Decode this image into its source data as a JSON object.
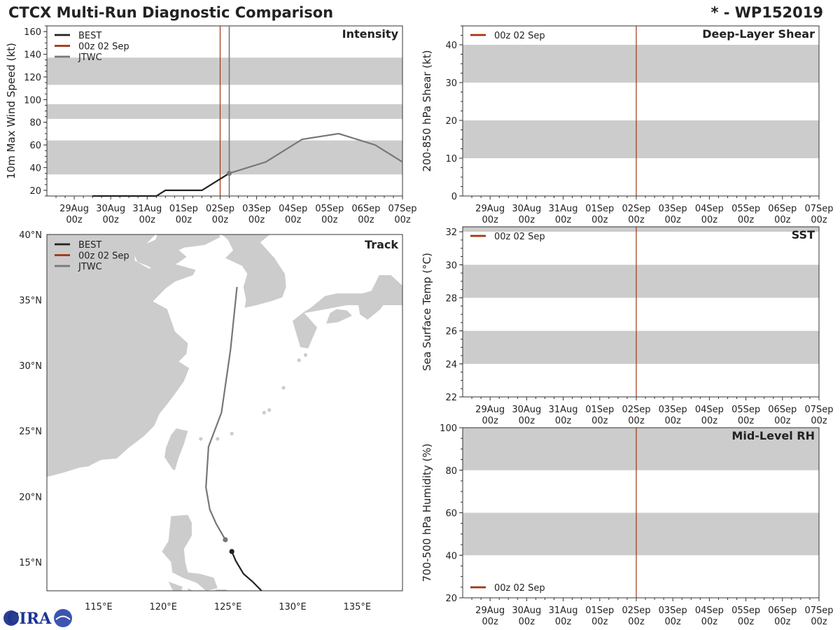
{
  "header": {
    "title": "CTCX Multi-Run Diagnostic Comparison",
    "storm_id": "* - WP152019"
  },
  "x_ticks": [
    {
      "day": "29Aug",
      "hour": "00z"
    },
    {
      "day": "30Aug",
      "hour": "00z"
    },
    {
      "day": "31Aug",
      "hour": "00z"
    },
    {
      "day": "01Sep",
      "hour": "00z"
    },
    {
      "day": "02Sep",
      "hour": "00z"
    },
    {
      "day": "03Sep",
      "hour": "00z"
    },
    {
      "day": "04Sep",
      "hour": "00z"
    },
    {
      "day": "05Sep",
      "hour": "00z"
    },
    {
      "day": "06Sep",
      "hour": "00z"
    },
    {
      "day": "07Sep",
      "hour": "00z"
    }
  ],
  "legend": {
    "best": "BEST",
    "run": "00z 02 Sep",
    "jtwc": "JTWC"
  },
  "colors": {
    "best": "#222222",
    "run": "#a0350f",
    "jtwc": "#777777",
    "band": "#cccccc",
    "land": "#cccccc"
  },
  "logo_text": "CIRA",
  "chart_data": [
    {
      "id": "intensity",
      "type": "line",
      "title": "Intensity",
      "ylabel": "10m Max Wind Speed (kt)",
      "xlabel": "",
      "x_units": "days since 29Aug 00z",
      "xlim": [
        -0.75,
        9.0
      ],
      "ylim": [
        15,
        165
      ],
      "yticks": [
        20,
        40,
        60,
        80,
        100,
        120,
        140,
        160
      ],
      "bands": [
        [
          34,
          64
        ],
        [
          83,
          96
        ],
        [
          113,
          137
        ]
      ],
      "run_marker_x": 4.0,
      "jtwc_marker_x": 4.25,
      "series": [
        {
          "name": "BEST",
          "x": [
            0.5,
            1,
            2,
            2.25,
            2.5,
            3,
            3.5,
            4,
            4.25
          ],
          "y": [
            15,
            15,
            15,
            15,
            20,
            20,
            20,
            30,
            35
          ]
        },
        {
          "name": "JTWC",
          "x": [
            4.25,
            4.75,
            5.25,
            6.25,
            7.25,
            8.25,
            9.0
          ],
          "y": [
            35,
            40,
            45,
            65,
            70,
            60,
            45
          ]
        }
      ]
    },
    {
      "id": "track",
      "type": "line",
      "title": "Track",
      "xlabel": "",
      "ylabel": "",
      "xlim": [
        111,
        138.5
      ],
      "ylim": [
        12.8,
        40
      ],
      "xtick_labels": [
        {
          "value": 115,
          "label": "115°E"
        },
        {
          "value": 120,
          "label": "120°E"
        },
        {
          "value": 125,
          "label": "125°E"
        },
        {
          "value": 130,
          "label": "130°E"
        },
        {
          "value": 135,
          "label": "135°E"
        }
      ],
      "ytick_labels": [
        {
          "value": 15,
          "label": "15°N"
        },
        {
          "value": 20,
          "label": "20°N"
        },
        {
          "value": 25,
          "label": "25°N"
        },
        {
          "value": 30,
          "label": "30°N"
        },
        {
          "value": 35,
          "label": "35°N"
        },
        {
          "value": 40,
          "label": "40°N"
        }
      ],
      "series": [
        {
          "name": "BEST",
          "lon": [
            127.6,
            126.9,
            126.2,
            125.6,
            125.3
          ],
          "lat": [
            12.8,
            13.5,
            14.1,
            15.1,
            15.8
          ]
        },
        {
          "name": "JTWC",
          "lon": [
            124.8,
            124.1,
            123.6,
            123.3,
            123.5,
            124.5,
            125.2,
            125.7
          ],
          "lat": [
            16.7,
            17.9,
            19.0,
            20.7,
            23.8,
            26.4,
            31.2,
            36.0
          ]
        }
      ],
      "current_position": {
        "lon": 125.3,
        "lat": 15.8
      },
      "jtwc_start": {
        "lon": 124.8,
        "lat": 16.7
      }
    },
    {
      "id": "shear",
      "type": "line",
      "title": "Deep-Layer Shear",
      "ylabel": "200-850 hPa Shear (kt)",
      "xlabel": "",
      "xlim": [
        -0.75,
        9.0
      ],
      "ylim": [
        0,
        45
      ],
      "yticks": [
        0,
        10,
        20,
        30,
        40
      ],
      "bands": [
        [
          10,
          20
        ],
        [
          30,
          40
        ]
      ],
      "run_marker_x": 4.0,
      "legend_position": "top-left",
      "series": []
    },
    {
      "id": "sst",
      "type": "line",
      "title": "SST",
      "ylabel": "Sea Surface Temp (°C)",
      "xlabel": "",
      "xlim": [
        -0.75,
        9.0
      ],
      "ylim": [
        22,
        32.3
      ],
      "yticks": [
        22,
        24,
        26,
        28,
        30,
        32
      ],
      "bands": [
        [
          24,
          26
        ],
        [
          28,
          30
        ],
        [
          32,
          32.3
        ]
      ],
      "run_marker_x": 4.0,
      "legend_position": "top-left",
      "series": []
    },
    {
      "id": "rh",
      "type": "line",
      "title": "Mid-Level RH",
      "ylabel": "700-500 hPa Humidity (%)",
      "xlabel": "",
      "xlim": [
        -0.75,
        9.0
      ],
      "ylim": [
        20,
        100
      ],
      "yticks": [
        20,
        40,
        60,
        80,
        100
      ],
      "bands": [
        [
          40,
          60
        ],
        [
          80,
          100
        ]
      ],
      "run_marker_x": 4.0,
      "legend_position": "bottom-left",
      "series": []
    }
  ]
}
